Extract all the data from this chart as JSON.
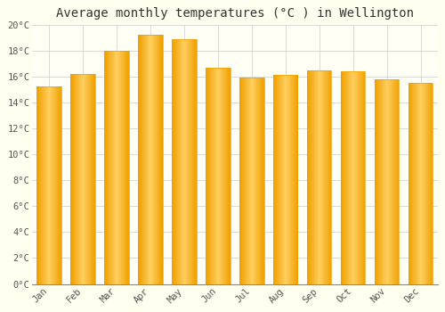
{
  "title": "Average monthly temperatures (°C ) in Wellington",
  "months": [
    "Jan",
    "Feb",
    "Mar",
    "Apr",
    "May",
    "Jun",
    "Jul",
    "Aug",
    "Sep",
    "Oct",
    "Nov",
    "Dec"
  ],
  "values": [
    15.2,
    16.2,
    18.0,
    19.2,
    18.9,
    16.7,
    15.9,
    16.1,
    16.5,
    16.4,
    15.8,
    15.5
  ],
  "bar_color_center": "#FFD060",
  "bar_color_edge": "#F0A000",
  "ylim": [
    0,
    20
  ],
  "ytick_step": 2,
  "background_color": "#FFFFF0",
  "plot_bg_color": "#FFFFF5",
  "grid_color": "#CCCCCC",
  "title_fontsize": 10,
  "tick_fontsize": 7.5,
  "tick_color": "#555555",
  "font_family": "monospace"
}
